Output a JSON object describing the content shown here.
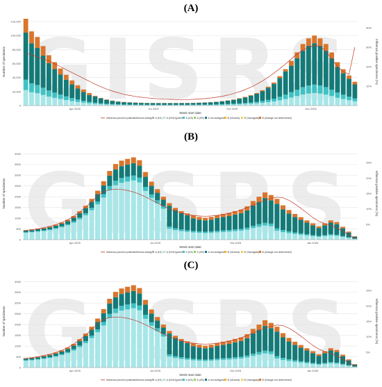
{
  "panels": [
    {
      "letter": "(A)",
      "watermark": "GISRS"
    },
    {
      "letter": "(B)",
      "watermark": "GISRS"
    },
    {
      "letter": "(C)",
      "watermark": "GISRS"
    }
  ],
  "colors": {
    "A_H1": "#aeb3bd",
    "A_H1N1pdm09": "#a8e6e8",
    "A_H3": "#3fc2c4",
    "A_H5": "#8fd14f",
    "A_not_subtyped": "#137a78",
    "B_Victoria": "#f2b531",
    "B_Yamagata": "#f2d24a",
    "B_lineage_not_determined": "#d9752c",
    "percent_line": "#c0392b",
    "grid": "#e4e4e4",
    "watermark": "#ececec"
  },
  "chart_data": [
    {
      "type": "bar",
      "stacked": true,
      "xlabel": "Week start date",
      "ylabel": "Number of specimens",
      "y2label": "Influenza positive specimens (%)",
      "x_ticks": [
        "Apr 2025",
        "Jul 2025",
        "Oct 2025",
        "Jan 2026"
      ],
      "y_ticks": [
        "0",
        "20,000",
        "40,000",
        "60,000",
        "80,000",
        "100,000",
        "120,000"
      ],
      "y2_ticks": [
        "10%",
        "20%",
        "30%",
        "40%"
      ],
      "ylim": [
        0,
        125000
      ],
      "y2lim": [
        0,
        45
      ],
      "legend": {
        "line_label": "Influenza percent positive",
        "subtype_title": "Influenza subtype",
        "items": [
          "A (H1)",
          "A (H1N1)pdm09",
          "A (H3)",
          "A (H5)",
          "A not subtyped",
          "B (Victoria)",
          "B (Yamagata)",
          "B (lineage not determined)"
        ]
      },
      "totals": [
        124000,
        106000,
        98000,
        85000,
        72000,
        62000,
        53000,
        44000,
        36000,
        29000,
        23000,
        18000,
        14000,
        11000,
        8800,
        7200,
        6000,
        5200,
        4700,
        4400,
        4100,
        3900,
        3800,
        3700,
        3700,
        3700,
        3700,
        3800,
        3800,
        4000,
        4200,
        4600,
        5000,
        5600,
        6400,
        7500,
        8800,
        10500,
        12500,
        15000,
        18000,
        22000,
        27000,
        33000,
        42000,
        52000,
        64000,
        76000,
        88000,
        96000,
        100000,
        96000,
        88000,
        76000,
        62000,
        52000,
        43000,
        34000
      ],
      "percent_positive": [
        27,
        26,
        25,
        24,
        23,
        21.5,
        20,
        18.5,
        17,
        15.5,
        14,
        12.5,
        11,
        9.7,
        8.5,
        7.5,
        6.6,
        5.8,
        5.2,
        4.7,
        4.3,
        4,
        3.7,
        3.5,
        3.3,
        3.2,
        3.1,
        3.1,
        3.1,
        3.2,
        3.4,
        3.6,
        3.9,
        4.3,
        4.8,
        5.4,
        6.2,
        7.1,
        8.2,
        9.5,
        11,
        12.7,
        14.6,
        16.7,
        19,
        21.4,
        24,
        26.5,
        28.5,
        30,
        31,
        30.5,
        28,
        24,
        20,
        17.5,
        16,
        30
      ]
    },
    {
      "type": "bar",
      "stacked": true,
      "xlabel": "Week start date",
      "ylabel": "Number of specimens",
      "y2label": "Influenza positive specimens (%)",
      "x_ticks": [
        "Apr 2025",
        "Jul 2025",
        "Oct 2025",
        "Jan 2026"
      ],
      "y_ticks": [
        "0",
        "500",
        "1000",
        "1500",
        "2000",
        "2500",
        "3000",
        "3500",
        "4000"
      ],
      "y2_ticks": [
        "5%",
        "10%",
        "15%",
        "20%",
        "25%"
      ],
      "ylim": [
        0,
        4300
      ],
      "y2lim": [
        0,
        30
      ],
      "legend": {
        "line_label": "Influenza percent positive",
        "subtype_title": "Influenza subtype",
        "items": [
          "A (H1)",
          "A (H1N1)pdm09",
          "A (H3)",
          "A (H5)",
          "A not subtyped",
          "B (Victoria)",
          "B (Yamagata)",
          "B (lineage not determined)"
        ]
      },
      "totals": [
        450,
        480,
        520,
        560,
        620,
        700,
        800,
        930,
        1100,
        1320,
        1580,
        1900,
        2280,
        2720,
        3200,
        3520,
        3680,
        3760,
        3830,
        3700,
        3150,
        2700,
        2350,
        2000,
        1700,
        1480,
        1330,
        1220,
        1130,
        1060,
        1020,
        1060,
        1140,
        1200,
        1250,
        1330,
        1400,
        1550,
        1800,
        2000,
        2200,
        2080,
        1900,
        1600,
        1380,
        1200,
        1050,
        900,
        760,
        620,
        760,
        900,
        820,
        600,
        380,
        160
      ],
      "percent_positive": [
        3,
        3.2,
        3.5,
        3.9,
        4.3,
        4.9,
        5.6,
        6.5,
        7.6,
        9,
        10.6,
        12.4,
        14.2,
        15.6,
        16.2,
        16.4,
        16.3,
        16,
        15.5,
        14.8,
        13.9,
        12.9,
        11.9,
        10.9,
        10,
        9.3,
        8.7,
        8.2,
        7.9,
        7.7,
        7.6,
        7.7,
        7.9,
        8.2,
        8.6,
        9.1,
        9.7,
        10.4,
        11.2,
        12,
        12.8,
        13.4,
        13.8,
        13.6,
        12.8,
        11.6,
        10.2,
        8.7,
        7.2,
        6,
        5.2,
        4.6,
        3.8,
        2.8,
        1.6,
        0.4
      ]
    },
    {
      "type": "bar",
      "stacked": true,
      "xlabel": "Week start date",
      "ylabel": "Number of specimens",
      "y2label": "Influenza positive specimens (%)",
      "x_ticks": [
        "Apr 2025",
        "Jul 2025",
        "Oct 2025",
        "Jan 2026"
      ],
      "y_ticks": [
        "0",
        "500",
        "1000",
        "1500",
        "2000",
        "2500",
        "3000",
        "3500",
        "4000"
      ],
      "y2_ticks": [
        "5%",
        "10%",
        "15%",
        "20%",
        "25%"
      ],
      "ylim": [
        0,
        4300
      ],
      "y2lim": [
        0,
        30
      ],
      "legend": {
        "line_label": "Influenza percent positive",
        "subtype_title": "Influenza subtype",
        "items": [
          "A (H1)",
          "A (H1N1)pdm09",
          "A (H3)",
          "A (H5)",
          "A not subtyped",
          "B (Victoria)",
          "B (Yamagata)",
          "B (lineage not determined)"
        ]
      },
      "totals": [
        440,
        470,
        510,
        560,
        620,
        700,
        800,
        930,
        1100,
        1320,
        1580,
        1900,
        2280,
        2720,
        3200,
        3520,
        3680,
        3760,
        3830,
        3700,
        3150,
        2700,
        2350,
        2000,
        1700,
        1480,
        1330,
        1220,
        1130,
        1060,
        1020,
        1060,
        1140,
        1200,
        1250,
        1330,
        1400,
        1550,
        1800,
        2000,
        2200,
        2080,
        1900,
        1600,
        1380,
        1200,
        1050,
        900,
        760,
        620,
        760,
        900,
        820,
        600,
        380,
        160
      ],
      "percent_positive": [
        3,
        3.2,
        3.5,
        3.9,
        4.3,
        4.9,
        5.6,
        6.5,
        7.6,
        9,
        10.6,
        12.4,
        14.2,
        15.6,
        16.2,
        16.4,
        16.3,
        16,
        15.5,
        14.8,
        13.9,
        12.9,
        11.9,
        10.9,
        10,
        9.3,
        8.7,
        8.2,
        7.9,
        7.7,
        7.6,
        7.7,
        7.9,
        8.2,
        8.6,
        9.1,
        9.7,
        10.4,
        11.2,
        12,
        12.8,
        13.4,
        13.8,
        13.6,
        12.8,
        11.6,
        10.2,
        8.7,
        7.2,
        6,
        5.2,
        4.6,
        3.8,
        2.8,
        1.6,
        0.4
      ]
    }
  ]
}
